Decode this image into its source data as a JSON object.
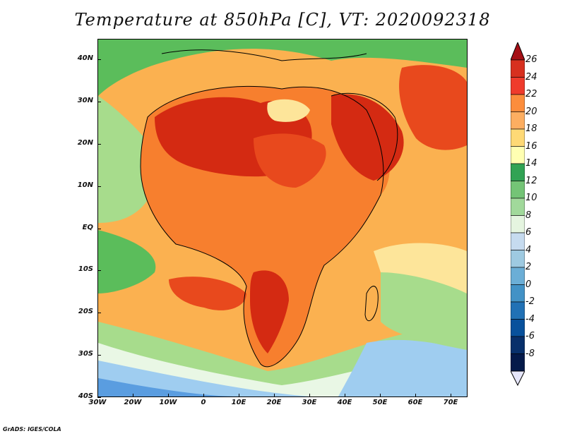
{
  "title": "Temperature at 850hPa [C], VT: 2020092318",
  "credit": "GrADS: IGES/COLA",
  "lat_labels": [
    "40N",
    "30N",
    "20N",
    "10N",
    "EQ",
    "10S",
    "20S",
    "30S",
    "40S"
  ],
  "lon_labels": [
    "30W",
    "20W",
    "10W",
    "0",
    "10E",
    "20E",
    "30E",
    "40E",
    "50E",
    "60E",
    "70E"
  ],
  "colorbar": {
    "labels": [
      "26",
      "24",
      "22",
      "20",
      "18",
      "16",
      "14",
      "12",
      "10",
      "8",
      "6",
      "4",
      "2",
      "0",
      "-2",
      "-4",
      "-6",
      "-8"
    ],
    "colors": [
      "#a50f15",
      "#d7301f",
      "#ef3b2c",
      "#fc8d3c",
      "#fdae61",
      "#fed976",
      "#ffffb2",
      "#31a354",
      "#74c476",
      "#a1d99b",
      "#e5f5e0",
      "#c6dbef",
      "#9ecae1",
      "#6baed6",
      "#4292c6",
      "#2171b5",
      "#08519c",
      "#08306b",
      "#041a4a"
    ]
  },
  "map_colors": {
    "deep_red": "#d42a12",
    "red": "#e8491d",
    "orange": "#f77f2e",
    "light_orange": "#fbb150",
    "yellow": "#fde59a",
    "green": "#5bbd5b",
    "light_green": "#a7dc8c",
    "pale": "#e9f7e5",
    "light_blue": "#9fcdf0",
    "blue": "#5a9de0"
  }
}
